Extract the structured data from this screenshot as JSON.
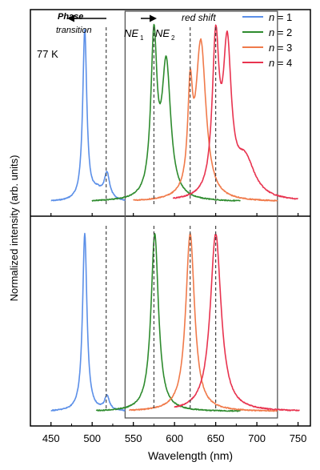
{
  "chart_data": {
    "type": "line",
    "xlabel": "Wavelength (nm)",
    "ylabel": "Normalized intensity (arb. units)",
    "xlim": [
      425,
      765
    ],
    "x_ticks": [
      "450",
      "500",
      "550",
      "600",
      "650",
      "700",
      "750"
    ],
    "x_tick_values": [
      450,
      500,
      550,
      600,
      650,
      700,
      750
    ],
    "grid": false,
    "legend": {
      "placement": "top-right",
      "entries": [
        {
          "label": "n = 1",
          "italic": "n",
          "rest": " = 1",
          "color": "#5b8fe8"
        },
        {
          "label": "n = 2",
          "italic": "n",
          "rest": " = 2",
          "color": "#2e8b2e"
        },
        {
          "label": "n = 3",
          "italic": "n",
          "rest": " = 3",
          "color": "#f07a4a"
        },
        {
          "label": "n = 4",
          "italic": "n",
          "rest": " = 4",
          "color": "#e8334f"
        }
      ]
    },
    "annotations": {
      "phase_line1": "Phase",
      "phase_line2": "transition",
      "red_shift": "red shift",
      "temperature": "77 K",
      "ne1_main": "NE",
      "ne1_sub": "1",
      "ne2_main": "NE",
      "ne2_sub": "2"
    },
    "dashed_lines_nm": [
      517,
      575,
      619,
      650
    ],
    "highlight_box_nm": [
      540,
      725
    ],
    "panels": [
      {
        "name": "top",
        "series": [
          {
            "name": "n = 1",
            "color": "#5b8fe8",
            "range": [
              450,
              540
            ],
            "peaks": [
              {
                "center": 491,
                "amp": 1.0,
                "gamma": 3.0
              },
              {
                "center": 518,
                "amp": 0.15,
                "gamma": 4.0
              },
              {
                "center": 506,
                "amp": 0.05,
                "gamma": 8.0
              }
            ]
          },
          {
            "name": "n = 2",
            "color": "#2e8b2e",
            "range": [
              500,
              680
            ],
            "peaks": [
              {
                "center": 575,
                "amp": 0.92,
                "gamma": 4.5
              },
              {
                "center": 590,
                "amp": 0.78,
                "gamma": 6.5
              }
            ]
          },
          {
            "name": "n = 3",
            "color": "#f07a4a",
            "range": [
              550,
              725
            ],
            "peaks": [
              {
                "center": 619,
                "amp": 0.55,
                "gamma": 3.5
              },
              {
                "center": 632,
                "amp": 0.92,
                "gamma": 7.5
              }
            ]
          },
          {
            "name": "n = 4",
            "color": "#e8334f",
            "range": [
              598,
              750
            ],
            "peaks": [
              {
                "center": 650,
                "amp": 0.88,
                "gamma": 5.0
              },
              {
                "center": 664,
                "amp": 0.84,
                "gamma": 6.0
              },
              {
                "center": 686,
                "amp": 0.22,
                "gamma": 14.0
              }
            ]
          }
        ]
      },
      {
        "name": "bottom",
        "series": [
          {
            "name": "n = 1",
            "color": "#5b8fe8",
            "range": [
              450,
              540
            ],
            "peaks": [
              {
                "center": 491,
                "amp": 1.0,
                "gamma": 3.2
              },
              {
                "center": 518,
                "amp": 0.08,
                "gamma": 3.5
              }
            ]
          },
          {
            "name": "n = 2",
            "color": "#2e8b2e",
            "range": [
              505,
              680
            ],
            "peaks": [
              {
                "center": 576,
                "amp": 1.0,
                "gamma": 5.5
              }
            ]
          },
          {
            "name": "n = 3",
            "color": "#f07a4a",
            "range": [
              545,
              725
            ],
            "peaks": [
              {
                "center": 619,
                "amp": 1.0,
                "gamma": 6.5
              }
            ]
          },
          {
            "name": "n = 4",
            "color": "#e8334f",
            "range": [
              600,
              752
            ],
            "peaks": [
              {
                "center": 650,
                "amp": 1.0,
                "gamma": 8.0
              }
            ]
          }
        ]
      }
    ]
  }
}
